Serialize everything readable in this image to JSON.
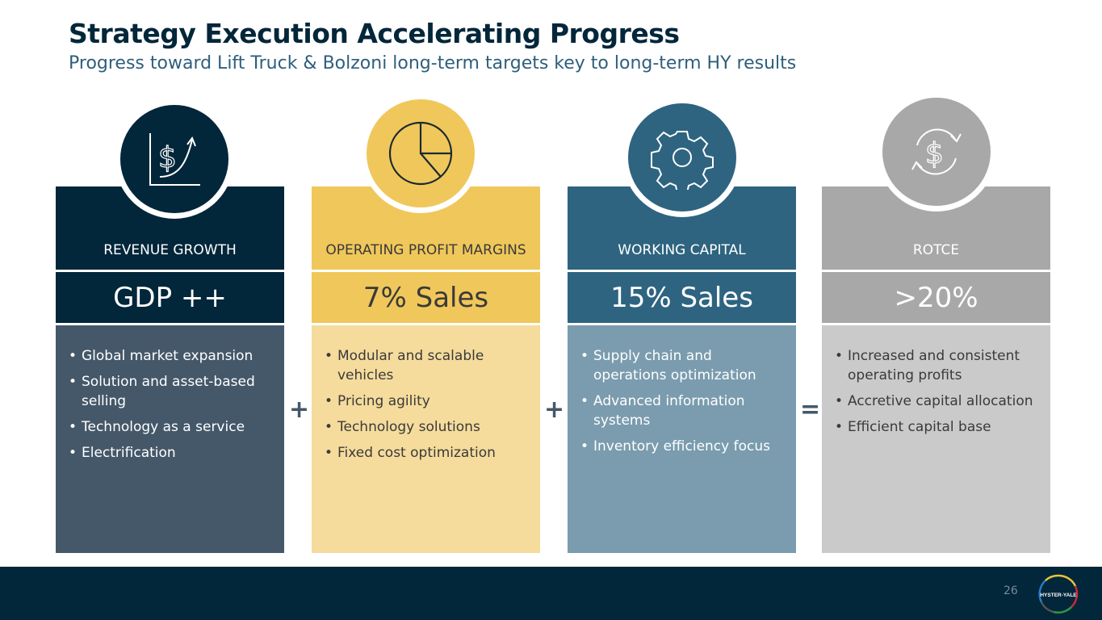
{
  "header": {
    "title": "Strategy Execution Accelerating Progress",
    "subtitle": "Progress toward Lift Truck & Bolzoni long-term targets key to long-term HY results"
  },
  "columns": [
    {
      "label": "REVENUE GROWTH",
      "value": "GDP ++",
      "icon": "revenue-growth-chart-icon",
      "colors": {
        "head": "#02263a",
        "body": "#45586a"
      },
      "bullets": [
        "Global market expansion",
        "Solution and asset-based selling",
        "Technology as a service",
        "Electrification"
      ]
    },
    {
      "label": "OPERATING PROFIT MARGINS",
      "value": "7% Sales",
      "icon": "pie-chart-icon",
      "colors": {
        "head": "#f0c75a",
        "body": "#f5dc9c"
      },
      "bullets": [
        "Modular and scalable vehicles",
        "Pricing agility",
        "Technology solutions",
        "Fixed cost optimization"
      ]
    },
    {
      "label": "WORKING CAPITAL",
      "value": "15% Sales",
      "icon": "gear-icon",
      "colors": {
        "head": "#2e6480",
        "body": "#7a9cae"
      },
      "bullets": [
        "Supply chain and operations optimization",
        "Advanced information systems",
        "Inventory efficiency focus"
      ]
    },
    {
      "label": "ROTCE",
      "value": ">20%",
      "icon": "dollar-cycle-icon",
      "colors": {
        "head": "#a8a8a8",
        "body": "#cbcacb"
      },
      "bullets": [
        "Increased and consistent operating profits",
        "Accretive capital allocation",
        "Efficient capital base"
      ]
    }
  ],
  "operators": [
    "+",
    "+",
    "="
  ],
  "footer": {
    "page_number": "26",
    "logo_text": "HYSTER-YALE"
  }
}
